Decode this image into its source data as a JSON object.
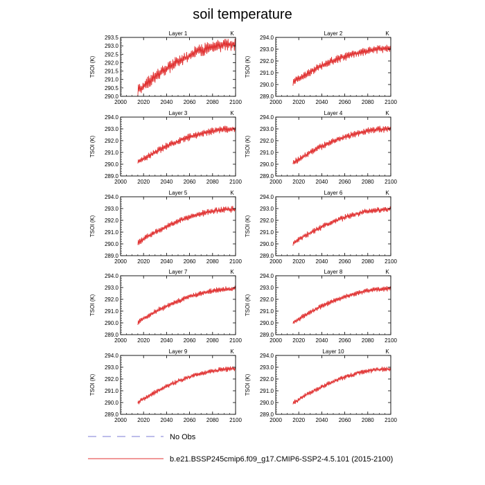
{
  "figure": {
    "title": "soil temperature",
    "legend": {
      "obs_label": "No Obs",
      "obs_color": "#7b7bd6",
      "model_label": "b.e21.BSSP245cmip6.f09_g17.CMIP6-SSP2-4.5.101 (2015-2100)",
      "model_color": "#e03030"
    }
  },
  "chart_data": [
    {
      "type": "line",
      "title": "Layer 1",
      "unit_label": "K",
      "ylabel": "TSOI  (K)",
      "xlim": [
        2000,
        2100
      ],
      "ylim": [
        290.0,
        293.5
      ],
      "xticks": [
        2000,
        2020,
        2040,
        2060,
        2080,
        2100
      ],
      "yticks": [
        290.0,
        290.5,
        291.0,
        291.5,
        292.0,
        292.5,
        293.0,
        293.5
      ],
      "x_tick_labels": [
        "2000",
        "2020",
        "2040",
        "2060",
        "2080",
        "2100"
      ],
      "y_tick_labels": [
        "290.0",
        "290.5",
        "291.0",
        "291.5",
        "292.0",
        "292.5",
        "293.0",
        "293.5"
      ],
      "series": [
        {
          "name": "b.e21.BSSP245cmip6.f09_g17.CMIP6-SSP2-4.5.101",
          "color": "#e03030",
          "x_start": 2015,
          "x_end": 2100,
          "y_start": 290.3,
          "y_end": 293.1,
          "curvature": 0.9,
          "seasonal_amplitude": 0.3,
          "noise": 0.15,
          "seed": 1
        }
      ]
    },
    {
      "type": "line",
      "title": "Layer 2",
      "unit_label": "K",
      "ylabel": "TSOI  (K)",
      "xlim": [
        2000,
        2100
      ],
      "ylim": [
        289.0,
        294.0
      ],
      "xticks": [
        2000,
        2020,
        2040,
        2060,
        2080,
        2100
      ],
      "yticks": [
        289.0,
        290.0,
        291.0,
        292.0,
        293.0,
        294.0
      ],
      "x_tick_labels": [
        "2000",
        "2020",
        "2040",
        "2060",
        "2080",
        "2100"
      ],
      "y_tick_labels": [
        "289.0",
        "290.0",
        "291.0",
        "292.0",
        "293.0",
        "294.0"
      ],
      "series": [
        {
          "name": "b.e21.BSSP245cmip6.f09_g17.CMIP6-SSP2-4.5.101",
          "color": "#e03030",
          "x_start": 2015,
          "x_end": 2100,
          "y_start": 290.2,
          "y_end": 293.05,
          "curvature": 0.9,
          "seasonal_amplitude": 0.28,
          "noise": 0.12,
          "seed": 2
        }
      ]
    },
    {
      "type": "line",
      "title": "Layer 3",
      "unit_label": "K",
      "ylabel": "TSOI  (K)",
      "xlim": [
        2000,
        2100
      ],
      "ylim": [
        289.0,
        294.0
      ],
      "xticks": [
        2000,
        2020,
        2040,
        2060,
        2080,
        2100
      ],
      "yticks": [
        289.0,
        290.0,
        291.0,
        292.0,
        293.0,
        294.0
      ],
      "x_tick_labels": [
        "2000",
        "2020",
        "2040",
        "2060",
        "2080",
        "2100"
      ],
      "y_tick_labels": [
        "289.0",
        "290.0",
        "291.0",
        "292.0",
        "293.0",
        "294.0"
      ],
      "series": [
        {
          "name": "b.e21.BSSP245cmip6.f09_g17.CMIP6-SSP2-4.5.101",
          "color": "#e03030",
          "x_start": 2015,
          "x_end": 2100,
          "y_start": 290.15,
          "y_end": 293.0,
          "curvature": 0.9,
          "seasonal_amplitude": 0.25,
          "noise": 0.1,
          "seed": 3
        }
      ]
    },
    {
      "type": "line",
      "title": "Layer 4",
      "unit_label": "K",
      "ylabel": "TSOI  (K)",
      "xlim": [
        2000,
        2100
      ],
      "ylim": [
        289.0,
        294.0
      ],
      "xticks": [
        2000,
        2020,
        2040,
        2060,
        2080,
        2100
      ],
      "yticks": [
        289.0,
        290.0,
        291.0,
        292.0,
        293.0,
        294.0
      ],
      "x_tick_labels": [
        "2000",
        "2020",
        "2040",
        "2060",
        "2080",
        "2100"
      ],
      "y_tick_labels": [
        "289.0",
        "290.0",
        "291.0",
        "292.0",
        "293.0",
        "294.0"
      ],
      "series": [
        {
          "name": "b.e21.BSSP245cmip6.f09_g17.CMIP6-SSP2-4.5.101",
          "color": "#e03030",
          "x_start": 2015,
          "x_end": 2100,
          "y_start": 290.1,
          "y_end": 293.0,
          "curvature": 0.9,
          "seasonal_amplitude": 0.23,
          "noise": 0.1,
          "seed": 4
        }
      ]
    },
    {
      "type": "line",
      "title": "Layer 5",
      "unit_label": "K",
      "ylabel": "TSOI  (K)",
      "xlim": [
        2000,
        2100
      ],
      "ylim": [
        289.0,
        294.0
      ],
      "xticks": [
        2000,
        2020,
        2040,
        2060,
        2080,
        2100
      ],
      "yticks": [
        289.0,
        290.0,
        291.0,
        292.0,
        293.0,
        294.0
      ],
      "x_tick_labels": [
        "2000",
        "2020",
        "2040",
        "2060",
        "2080",
        "2100"
      ],
      "y_tick_labels": [
        "289.0",
        "290.0",
        "291.0",
        "292.0",
        "293.0",
        "294.0"
      ],
      "series": [
        {
          "name": "b.e21.BSSP245cmip6.f09_g17.CMIP6-SSP2-4.5.101",
          "color": "#e03030",
          "x_start": 2015,
          "x_end": 2100,
          "y_start": 290.1,
          "y_end": 292.95,
          "curvature": 0.9,
          "seasonal_amplitude": 0.21,
          "noise": 0.09,
          "seed": 5
        }
      ]
    },
    {
      "type": "line",
      "title": "Layer 6",
      "unit_label": "K",
      "ylabel": "TSOI  (K)",
      "xlim": [
        2000,
        2100
      ],
      "ylim": [
        289.0,
        294.0
      ],
      "xticks": [
        2000,
        2020,
        2040,
        2060,
        2080,
        2100
      ],
      "yticks": [
        289.0,
        290.0,
        291.0,
        292.0,
        293.0,
        294.0
      ],
      "x_tick_labels": [
        "2000",
        "2020",
        "2040",
        "2060",
        "2080",
        "2100"
      ],
      "y_tick_labels": [
        "289.0",
        "290.0",
        "291.0",
        "292.0",
        "293.0",
        "294.0"
      ],
      "series": [
        {
          "name": "b.e21.BSSP245cmip6.f09_g17.CMIP6-SSP2-4.5.101",
          "color": "#e03030",
          "x_start": 2015,
          "x_end": 2100,
          "y_start": 290.05,
          "y_end": 292.95,
          "curvature": 0.9,
          "seasonal_amplitude": 0.2,
          "noise": 0.09,
          "seed": 6
        }
      ]
    },
    {
      "type": "line",
      "title": "Layer 7",
      "unit_label": "K",
      "ylabel": "TSOI  (K)",
      "xlim": [
        2000,
        2100
      ],
      "ylim": [
        289.0,
        294.0
      ],
      "xticks": [
        2000,
        2020,
        2040,
        2060,
        2080,
        2100
      ],
      "yticks": [
        289.0,
        290.0,
        291.0,
        292.0,
        293.0,
        294.0
      ],
      "x_tick_labels": [
        "2000",
        "2020",
        "2040",
        "2060",
        "2080",
        "2100"
      ],
      "y_tick_labels": [
        "289.0",
        "290.0",
        "291.0",
        "292.0",
        "293.0",
        "294.0"
      ],
      "series": [
        {
          "name": "b.e21.BSSP245cmip6.f09_g17.CMIP6-SSP2-4.5.101",
          "color": "#e03030",
          "x_start": 2015,
          "x_end": 2100,
          "y_start": 290.05,
          "y_end": 292.9,
          "curvature": 0.9,
          "seasonal_amplitude": 0.19,
          "noise": 0.08,
          "seed": 7
        }
      ]
    },
    {
      "type": "line",
      "title": "Layer 8",
      "unit_label": "K",
      "ylabel": "TSOI  (K)",
      "xlim": [
        2000,
        2100
      ],
      "ylim": [
        289.0,
        294.0
      ],
      "xticks": [
        2000,
        2020,
        2040,
        2060,
        2080,
        2100
      ],
      "yticks": [
        289.0,
        290.0,
        291.0,
        292.0,
        293.0,
        294.0
      ],
      "x_tick_labels": [
        "2000",
        "2020",
        "2040",
        "2060",
        "2080",
        "2100"
      ],
      "y_tick_labels": [
        "289.0",
        "290.0",
        "291.0",
        "292.0",
        "293.0",
        "294.0"
      ],
      "series": [
        {
          "name": "b.e21.BSSP245cmip6.f09_g17.CMIP6-SSP2-4.5.101",
          "color": "#e03030",
          "x_start": 2015,
          "x_end": 2100,
          "y_start": 290.0,
          "y_end": 292.9,
          "curvature": 0.9,
          "seasonal_amplitude": 0.18,
          "noise": 0.08,
          "seed": 8
        }
      ]
    },
    {
      "type": "line",
      "title": "Layer 9",
      "unit_label": "K",
      "ylabel": "TSOI  (K)",
      "xlim": [
        2000,
        2100
      ],
      "ylim": [
        289.0,
        294.0
      ],
      "xticks": [
        2000,
        2020,
        2040,
        2060,
        2080,
        2100
      ],
      "yticks": [
        289.0,
        290.0,
        291.0,
        292.0,
        293.0,
        294.0
      ],
      "x_tick_labels": [
        "2000",
        "2020",
        "2040",
        "2060",
        "2080",
        "2100"
      ],
      "y_tick_labels": [
        "289.0",
        "290.0",
        "291.0",
        "292.0",
        "293.0",
        "294.0"
      ],
      "series": [
        {
          "name": "b.e21.BSSP245cmip6.f09_g17.CMIP6-SSP2-4.5.101",
          "color": "#e03030",
          "x_start": 2015,
          "x_end": 2100,
          "y_start": 290.0,
          "y_end": 292.85,
          "curvature": 0.9,
          "seasonal_amplitude": 0.17,
          "noise": 0.08,
          "seed": 9
        }
      ]
    },
    {
      "type": "line",
      "title": "Layer 10",
      "unit_label": "K",
      "ylabel": "TSOI  (K)",
      "xlim": [
        2000,
        2100
      ],
      "ylim": [
        289.0,
        294.0
      ],
      "xticks": [
        2000,
        2020,
        2040,
        2060,
        2080,
        2100
      ],
      "yticks": [
        289.0,
        290.0,
        291.0,
        292.0,
        293.0,
        294.0
      ],
      "x_tick_labels": [
        "2000",
        "2020",
        "2040",
        "2060",
        "2080",
        "2100"
      ],
      "y_tick_labels": [
        "289.0",
        "290.0",
        "291.0",
        "292.0",
        "293.0",
        "294.0"
      ],
      "series": [
        {
          "name": "b.e21.BSSP245cmip6.f09_g17.CMIP6-SSP2-4.5.101",
          "color": "#e03030",
          "x_start": 2015,
          "x_end": 2100,
          "y_start": 289.95,
          "y_end": 292.85,
          "curvature": 0.9,
          "seasonal_amplitude": 0.16,
          "noise": 0.08,
          "seed": 10
        }
      ]
    }
  ]
}
